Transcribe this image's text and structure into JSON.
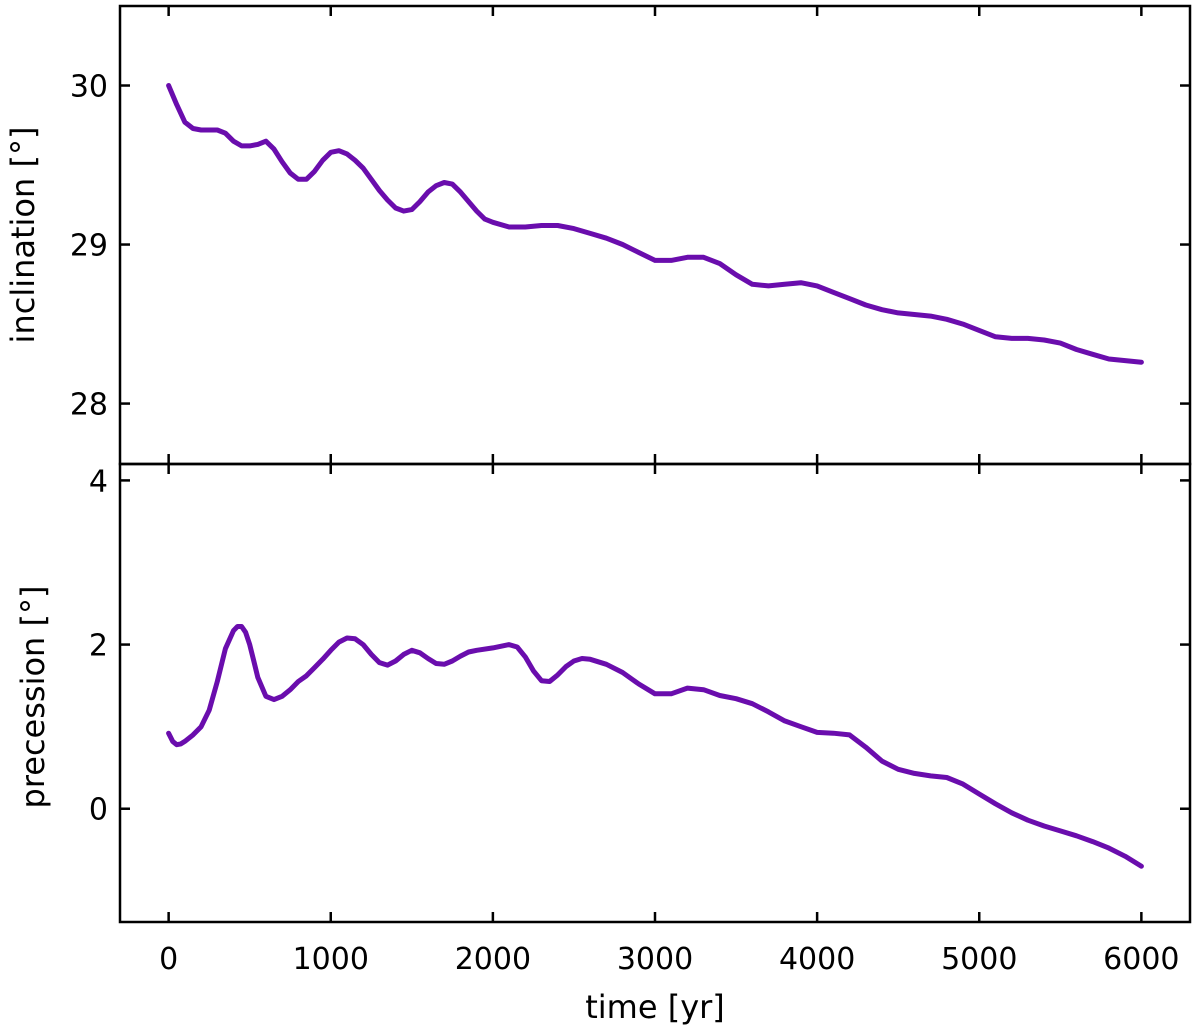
{
  "chart_data": [
    {
      "type": "line",
      "title": "",
      "xlabel": "",
      "ylabel": "inclination [°]",
      "xlim": [
        -300,
        6300
      ],
      "ylim": [
        27.62,
        30.5
      ],
      "xticks": [
        0,
        1000,
        2000,
        3000,
        4000,
        5000,
        6000
      ],
      "yticks": [
        28,
        29,
        30
      ],
      "ytick_labels": [
        "28",
        "29",
        "30"
      ],
      "grid": false,
      "line_color": "#6a0dad",
      "series": [
        {
          "x": [
            0,
            50,
            100,
            150,
            200,
            250,
            300,
            350,
            400,
            450,
            500,
            550,
            600,
            650,
            700,
            750,
            800,
            850,
            900,
            950,
            1000,
            1050,
            1100,
            1150,
            1200,
            1250,
            1300,
            1350,
            1400,
            1450,
            1500,
            1550,
            1600,
            1650,
            1700,
            1750,
            1800,
            1850,
            1900,
            1950,
            2000,
            2100,
            2200,
            2300,
            2400,
            2500,
            2600,
            2700,
            2800,
            2900,
            3000,
            3100,
            3200,
            3300,
            3400,
            3500,
            3600,
            3700,
            3800,
            3900,
            4000,
            4100,
            4200,
            4300,
            4400,
            4500,
            4600,
            4700,
            4800,
            4900,
            5000,
            5100,
            5200,
            5300,
            5400,
            5500,
            5600,
            5700,
            5800,
            5900,
            6000
          ],
          "values": [
            30.0,
            29.88,
            29.77,
            29.73,
            29.72,
            29.72,
            29.72,
            29.7,
            29.65,
            29.62,
            29.62,
            29.63,
            29.65,
            29.6,
            29.52,
            29.45,
            29.41,
            29.41,
            29.46,
            29.53,
            29.58,
            29.59,
            29.57,
            29.53,
            29.48,
            29.41,
            29.34,
            29.28,
            29.23,
            29.21,
            29.22,
            29.27,
            29.33,
            29.37,
            29.39,
            29.38,
            29.33,
            29.27,
            29.21,
            29.16,
            29.14,
            29.11,
            29.11,
            29.12,
            29.12,
            29.1,
            29.07,
            29.04,
            29.0,
            28.95,
            28.9,
            28.9,
            28.92,
            28.92,
            28.88,
            28.81,
            28.75,
            28.74,
            28.75,
            28.76,
            28.74,
            28.7,
            28.66,
            28.62,
            28.59,
            28.57,
            28.56,
            28.55,
            28.53,
            28.5,
            28.46,
            28.42,
            28.41,
            28.41,
            28.4,
            28.38,
            28.34,
            28.31,
            28.28,
            28.27,
            28.26
          ]
        }
      ]
    },
    {
      "type": "line",
      "title": "",
      "xlabel": "time [yr]",
      "ylabel": "precession [°]",
      "xlim": [
        -300,
        6300
      ],
      "ylim": [
        -1.38,
        4.2
      ],
      "xticks": [
        0,
        1000,
        2000,
        3000,
        4000,
        5000,
        6000
      ],
      "xtick_labels": [
        "0",
        "1000",
        "2000",
        "3000",
        "4000",
        "5000",
        "6000"
      ],
      "yticks": [
        0,
        2,
        4
      ],
      "ytick_labels": [
        "0",
        "2",
        "4"
      ],
      "grid": false,
      "line_color": "#6a0dad",
      "series": [
        {
          "x": [
            0,
            25,
            50,
            75,
            100,
            150,
            200,
            250,
            300,
            350,
            400,
            425,
            450,
            475,
            500,
            525,
            550,
            600,
            650,
            700,
            750,
            800,
            850,
            900,
            950,
            1000,
            1050,
            1100,
            1150,
            1200,
            1250,
            1300,
            1350,
            1400,
            1450,
            1500,
            1550,
            1600,
            1650,
            1700,
            1750,
            1800,
            1850,
            1900,
            2000,
            2100,
            2150,
            2200,
            2250,
            2300,
            2350,
            2400,
            2450,
            2500,
            2550,
            2600,
            2700,
            2800,
            2900,
            3000,
            3100,
            3200,
            3300,
            3400,
            3500,
            3600,
            3700,
            3800,
            3900,
            4000,
            4100,
            4200,
            4300,
            4400,
            4500,
            4600,
            4700,
            4800,
            4900,
            5000,
            5100,
            5200,
            5300,
            5400,
            5500,
            5600,
            5700,
            5800,
            5900,
            6000
          ],
          "values": [
            0.92,
            0.82,
            0.78,
            0.79,
            0.82,
            0.9,
            1.0,
            1.2,
            1.55,
            1.95,
            2.17,
            2.22,
            2.22,
            2.15,
            2.0,
            1.8,
            1.6,
            1.37,
            1.33,
            1.37,
            1.45,
            1.55,
            1.62,
            1.72,
            1.82,
            1.93,
            2.03,
            2.08,
            2.07,
            2.0,
            1.88,
            1.78,
            1.75,
            1.8,
            1.88,
            1.93,
            1.9,
            1.83,
            1.77,
            1.76,
            1.8,
            1.86,
            1.91,
            1.93,
            1.96,
            2.0,
            1.97,
            1.85,
            1.68,
            1.56,
            1.55,
            1.63,
            1.73,
            1.8,
            1.83,
            1.82,
            1.76,
            1.66,
            1.52,
            1.4,
            1.4,
            1.47,
            1.45,
            1.38,
            1.34,
            1.28,
            1.18,
            1.07,
            1.0,
            0.93,
            0.92,
            0.9,
            0.75,
            0.58,
            0.48,
            0.43,
            0.4,
            0.38,
            0.3,
            0.18,
            0.06,
            -0.05,
            -0.14,
            -0.21,
            -0.27,
            -0.33,
            -0.4,
            -0.48,
            -0.58,
            -0.7
          ]
        }
      ]
    }
  ]
}
